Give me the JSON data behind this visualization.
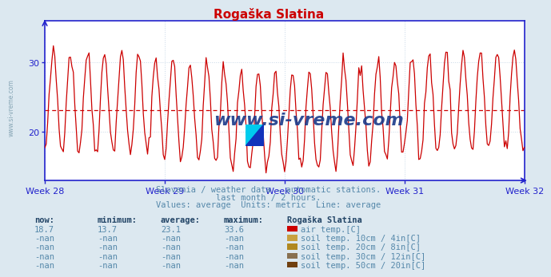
{
  "title": "Rogaška Slatina",
  "bg_color": "#dce8f0",
  "plot_bg_color": "#ffffff",
  "line_color": "#cc0000",
  "avg_line_color": "#cc0000",
  "axis_color": "#2222cc",
  "text_color": "#5588aa",
  "grid_color": "#c8d8e8",
  "weeks": [
    "Week 28",
    "Week 29",
    "Week 30",
    "Week 31",
    "Week 32"
  ],
  "week_positions": [
    0,
    84,
    168,
    252,
    336
  ],
  "yticks": [
    20,
    30
  ],
  "ylim": [
    13.0,
    36.0
  ],
  "xlim": [
    0,
    336
  ],
  "avg_value": 23.1,
  "subtitle1": "Slovenia / weather data - automatic stations.",
  "subtitle2": "last month / 2 hours.",
  "subtitle3": "Values: average  Units: metric  Line: average",
  "table_headers": [
    "now:",
    "minimum:",
    "average:",
    "maximum:",
    "Rogaška Slatina"
  ],
  "table_rows": [
    [
      "18.7",
      "13.7",
      "23.1",
      "33.6",
      "#cc0000",
      "air temp.[C]"
    ],
    [
      "-nan",
      "-nan",
      "-nan",
      "-nan",
      "#c8a040",
      "soil temp. 10cm / 4in[C]"
    ],
    [
      "-nan",
      "-nan",
      "-nan",
      "-nan",
      "#b08820",
      "soil temp. 20cm / 8in[C]"
    ],
    [
      "-nan",
      "-nan",
      "-nan",
      "-nan",
      "#887050",
      "soil temp. 30cm / 12in[C]"
    ],
    [
      "-nan",
      "-nan",
      "-nan",
      "-nan",
      "#704010",
      "soil temp. 50cm / 20in[C]"
    ]
  ],
  "watermark": "www.si-vreme.com",
  "watermark_color": "#1a3a8a",
  "sidebar_watermark": "www.si-vreme.com",
  "sidebar_color": "#7799aa",
  "num_points": 337,
  "seed": 42
}
